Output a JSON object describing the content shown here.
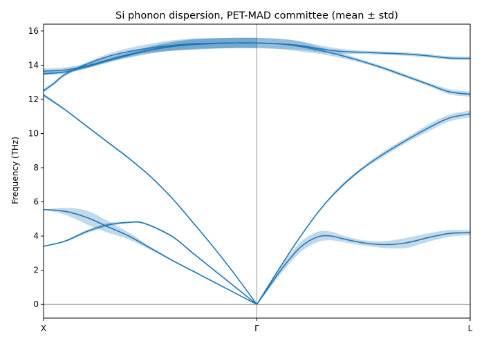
{
  "chart_data": {
    "type": "line",
    "title": "Si phonon dispersion, PET-MAD committee (mean ± std)",
    "xlabel": "",
    "ylabel": "Frequency (THz)",
    "xlim": [
      0,
      2
    ],
    "ylim": [
      -0.8,
      16.4
    ],
    "x_ticks": [
      {
        "label": "X",
        "value": 0
      },
      {
        "label": "Γ",
        "value": 1
      },
      {
        "label": "L",
        "value": 2
      }
    ],
    "y_ticks": [
      0,
      2,
      4,
      6,
      8,
      10,
      12,
      14,
      16
    ],
    "reference_lines": {
      "horizontal": [
        0
      ],
      "vertical": [
        1
      ]
    },
    "line_color": "#1f77b4",
    "band_color": "#1f77b4",
    "branches": [
      {
        "segment": "X-Γ",
        "points": [
          [
            0,
            3.4,
            0
          ],
          [
            0.1,
            3.7,
            0.05
          ],
          [
            0.2,
            4.25,
            0.1
          ],
          [
            0.3,
            4.65,
            0.1
          ],
          [
            0.4,
            4.8,
            0.05
          ],
          [
            0.47,
            4.75,
            0.05
          ],
          [
            0.6,
            4.0,
            0.05
          ],
          [
            0.7,
            3.0,
            0.05
          ],
          [
            0.8,
            2.0,
            0.04
          ],
          [
            0.9,
            1.0,
            0.03
          ],
          [
            1,
            0,
            0
          ]
        ]
      },
      {
        "segment": "X-Γ",
        "points": [
          [
            0,
            5.55,
            0
          ],
          [
            0.1,
            5.45,
            0.2
          ],
          [
            0.2,
            5.1,
            0.4
          ],
          [
            0.3,
            4.55,
            0.35
          ],
          [
            0.4,
            4.0,
            0.2
          ],
          [
            0.5,
            3.3,
            0.1
          ],
          [
            0.6,
            2.6,
            0.05
          ],
          [
            0.7,
            1.95,
            0.04
          ],
          [
            0.8,
            1.3,
            0.03
          ],
          [
            0.9,
            0.65,
            0.02
          ],
          [
            1,
            0,
            0
          ]
        ]
      },
      {
        "segment": "X-Γ",
        "points": [
          [
            0,
            12.25,
            0.1
          ],
          [
            0.1,
            11.4,
            0.05
          ],
          [
            0.2,
            10.45,
            0.05
          ],
          [
            0.3,
            9.5,
            0.05
          ],
          [
            0.4,
            8.55,
            0.05
          ],
          [
            0.5,
            7.5,
            0.05
          ],
          [
            0.6,
            6.25,
            0.05
          ],
          [
            0.7,
            4.8,
            0.05
          ],
          [
            0.8,
            3.3,
            0.03
          ],
          [
            0.9,
            1.7,
            0.02
          ],
          [
            1,
            0,
            0
          ]
        ]
      },
      {
        "segment": "X-Γ",
        "points": [
          [
            0,
            12.5,
            0.1
          ],
          [
            0.05,
            12.95,
            0.1
          ],
          [
            0.1,
            13.45,
            0.1
          ],
          [
            0.2,
            14.05,
            0.1
          ],
          [
            0.3,
            14.5,
            0.15
          ],
          [
            0.4,
            14.8,
            0.2
          ],
          [
            0.5,
            15.0,
            0.25
          ],
          [
            0.6,
            15.15,
            0.3
          ],
          [
            0.7,
            15.25,
            0.3
          ],
          [
            0.8,
            15.28,
            0.3
          ],
          [
            0.9,
            15.3,
            0.3
          ],
          [
            1,
            15.3,
            0.3
          ]
        ]
      },
      {
        "segment": "X-Γ",
        "points": [
          [
            0,
            13.65,
            0.15
          ],
          [
            0.1,
            13.72,
            0.15
          ],
          [
            0.2,
            13.95,
            0.15
          ],
          [
            0.3,
            14.3,
            0.15
          ],
          [
            0.4,
            14.62,
            0.15
          ],
          [
            0.5,
            14.9,
            0.2
          ],
          [
            0.6,
            15.1,
            0.25
          ],
          [
            0.7,
            15.22,
            0.3
          ],
          [
            0.8,
            15.28,
            0.3
          ],
          [
            0.9,
            15.3,
            0.3
          ],
          [
            1,
            15.3,
            0.3
          ]
        ]
      },
      {
        "segment": "X-Γ",
        "points": [
          [
            0,
            13.5,
            0.1
          ],
          [
            0.1,
            13.6,
            0.1
          ],
          [
            0.2,
            13.9,
            0.1
          ],
          [
            0.3,
            14.25,
            0.1
          ],
          [
            0.4,
            14.58,
            0.15
          ],
          [
            0.5,
            14.88,
            0.2
          ],
          [
            0.6,
            15.08,
            0.25
          ],
          [
            0.7,
            15.2,
            0.3
          ],
          [
            0.8,
            15.26,
            0.3
          ],
          [
            0.9,
            15.3,
            0.3
          ],
          [
            1,
            15.3,
            0.3
          ]
        ]
      },
      {
        "segment": "Γ-L",
        "points": [
          [
            1,
            0,
            0
          ],
          [
            1.05,
            0.9,
            0.1
          ],
          [
            1.1,
            1.8,
            0.2
          ],
          [
            1.15,
            2.6,
            0.25
          ],
          [
            1.2,
            3.3,
            0.3
          ],
          [
            1.25,
            3.75,
            0.3
          ],
          [
            1.3,
            4.0,
            0.3
          ],
          [
            1.35,
            4.0,
            0.25
          ],
          [
            1.4,
            3.85,
            0.2
          ],
          [
            1.5,
            3.6,
            0.15
          ],
          [
            1.6,
            3.5,
            0.2
          ],
          [
            1.7,
            3.6,
            0.3
          ],
          [
            1.8,
            3.9,
            0.25
          ],
          [
            1.9,
            4.15,
            0.2
          ],
          [
            2,
            4.2,
            0.15
          ]
        ]
      },
      {
        "segment": "Γ-L",
        "points": [
          [
            1,
            0,
            0
          ],
          [
            1.1,
            2.0,
            0.05
          ],
          [
            1.2,
            3.9,
            0.05
          ],
          [
            1.3,
            5.6,
            0.05
          ],
          [
            1.4,
            6.95,
            0.1
          ],
          [
            1.5,
            8.0,
            0.1
          ],
          [
            1.6,
            8.85,
            0.15
          ],
          [
            1.7,
            9.6,
            0.15
          ],
          [
            1.8,
            10.3,
            0.2
          ],
          [
            1.9,
            10.9,
            0.2
          ],
          [
            2,
            11.15,
            0.2
          ]
        ]
      },
      {
        "segment": "Γ-L",
        "points": [
          [
            1,
            15.3,
            0.3
          ],
          [
            1.1,
            15.25,
            0.3
          ],
          [
            1.2,
            15.1,
            0.3
          ],
          [
            1.3,
            14.85,
            0.2
          ],
          [
            1.4,
            14.55,
            0.15
          ],
          [
            1.5,
            14.2,
            0.1
          ],
          [
            1.6,
            13.8,
            0.1
          ],
          [
            1.7,
            13.35,
            0.1
          ],
          [
            1.8,
            12.9,
            0.1
          ],
          [
            1.9,
            12.45,
            0.15
          ],
          [
            2,
            12.3,
            0.15
          ]
        ]
      },
      {
        "segment": "Γ-L",
        "points": [
          [
            1,
            15.3,
            0.3
          ],
          [
            1.1,
            15.25,
            0.3
          ],
          [
            1.2,
            15.15,
            0.25
          ],
          [
            1.3,
            14.95,
            0.2
          ],
          [
            1.4,
            14.8,
            0.15
          ],
          [
            1.5,
            14.75,
            0.1
          ],
          [
            1.6,
            14.7,
            0.1
          ],
          [
            1.7,
            14.65,
            0.1
          ],
          [
            1.8,
            14.55,
            0.1
          ],
          [
            1.9,
            14.42,
            0.1
          ],
          [
            2,
            14.4,
            0.1
          ]
        ]
      }
    ]
  }
}
